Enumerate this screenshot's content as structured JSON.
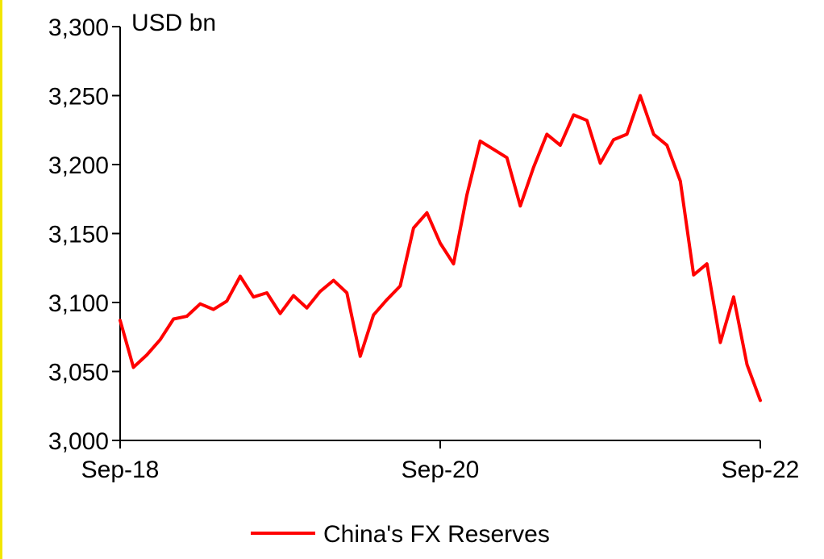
{
  "chart_data": {
    "type": "line",
    "unit_label": "USD bn",
    "ylim": [
      3000,
      3300
    ],
    "yticks": [
      3000,
      3050,
      3100,
      3150,
      3200,
      3250,
      3300
    ],
    "ytick_labels": [
      "3,000",
      "3,050",
      "3,100",
      "3,150",
      "3,200",
      "3,250",
      "3,300"
    ],
    "xticks": [
      "Sep-18",
      "Sep-20",
      "Sep-22"
    ],
    "legend": {
      "position": "bottom-center"
    },
    "colors": {
      "series": "#ff0000",
      "axis": "#000000"
    },
    "series": [
      {
        "name": "China's FX Reserves",
        "x": [
          "Sep-18",
          "Oct-18",
          "Nov-18",
          "Dec-18",
          "Jan-19",
          "Feb-19",
          "Mar-19",
          "Apr-19",
          "May-19",
          "Jun-19",
          "Jul-19",
          "Aug-19",
          "Sep-19",
          "Oct-19",
          "Nov-19",
          "Dec-19",
          "Jan-20",
          "Feb-20",
          "Mar-20",
          "Apr-20",
          "May-20",
          "Jun-20",
          "Jul-20",
          "Aug-20",
          "Sep-20",
          "Oct-20",
          "Nov-20",
          "Dec-20",
          "Jan-21",
          "Feb-21",
          "Mar-21",
          "Apr-21",
          "May-21",
          "Jun-21",
          "Jul-21",
          "Aug-21",
          "Sep-21",
          "Oct-21",
          "Nov-21",
          "Dec-21",
          "Jan-22",
          "Feb-22",
          "Mar-22",
          "Apr-22",
          "May-22",
          "Jun-22",
          "Jul-22",
          "Aug-22",
          "Sep-22"
        ],
        "values": [
          3087,
          3053,
          3062,
          3073,
          3088,
          3090,
          3099,
          3095,
          3101,
          3119,
          3104,
          3107,
          3092,
          3105,
          3096,
          3108,
          3116,
          3107,
          3061,
          3091,
          3102,
          3112,
          3154,
          3165,
          3143,
          3128,
          3178,
          3217,
          3211,
          3205,
          3170,
          3198,
          3222,
          3214,
          3236,
          3232,
          3201,
          3218,
          3222,
          3250,
          3222,
          3214,
          3188,
          3120,
          3128,
          3071,
          3104,
          3055,
          3029
        ]
      }
    ]
  }
}
